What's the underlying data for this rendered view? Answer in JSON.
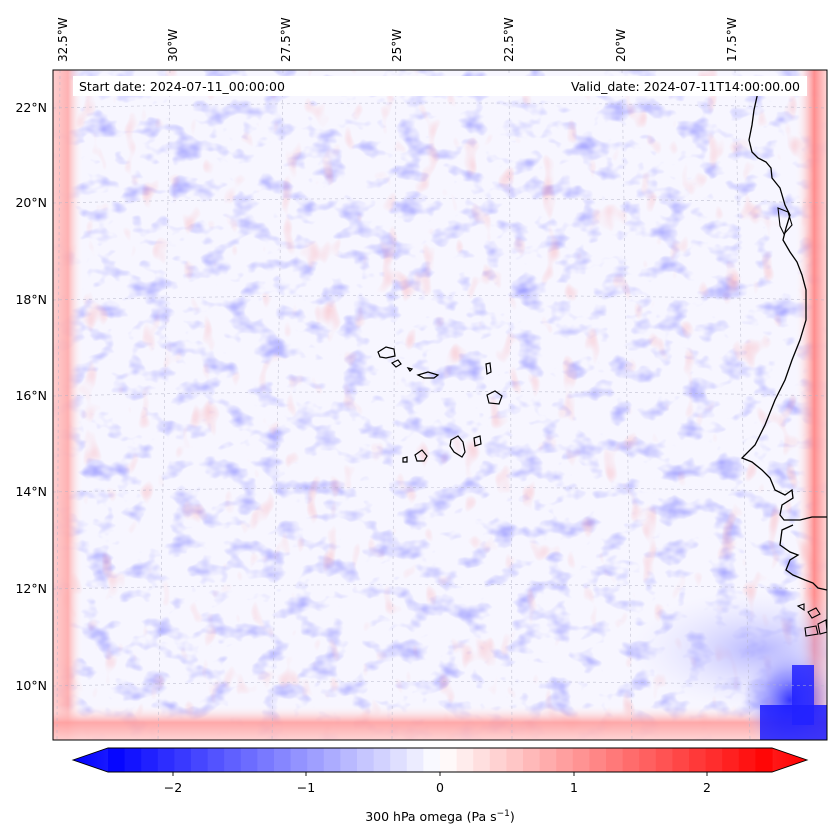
{
  "header": {
    "start_date": "Start date: 2024-07-11_00:00:00",
    "valid_date": "Valid_date: 2024-07-11T14:00:00.00"
  },
  "lon_labels": [
    "32.5°W",
    "30°W",
    "27.5°W",
    "25°W",
    "22.5°W",
    "20°W",
    "17.5°W"
  ],
  "lat_labels": [
    "22°N",
    "20°N",
    "18°N",
    "16°N",
    "14°N",
    "12°N",
    "10°N"
  ],
  "colorbar": {
    "ticks": [
      "−2",
      "−1",
      "0",
      "1",
      "2"
    ],
    "label_main": "300 hPa omega (Pa s",
    "label_exp": "−1",
    "label_close": ")",
    "range": [
      -2.6,
      2.6
    ],
    "colormap": "bwr",
    "min_color": "#0000ff",
    "max_color": "#ff0000"
  },
  "map": {
    "field": "300 hPa omega",
    "units": "Pa s-1",
    "coastline_color": "#000000",
    "gridline_color": "#b4b4c8"
  }
}
